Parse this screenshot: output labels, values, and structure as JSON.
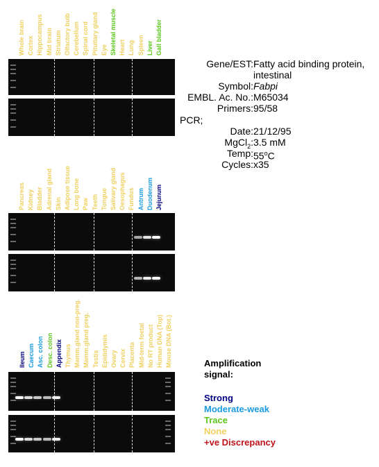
{
  "colors": {
    "strong": "#000080",
    "moderate": "#1a9be0",
    "trace": "#5cc81e",
    "none": "#f0d060",
    "discrepancy": "#c0121a"
  },
  "panels": [
    {
      "lanes": [
        {
          "label": "Whole brain",
          "signal": "none"
        },
        {
          "label": "Cortex",
          "signal": "none"
        },
        {
          "label": "Hippocampus",
          "signal": "none"
        },
        {
          "label": "Mid brain",
          "signal": "none"
        },
        {
          "label": "Striatum",
          "signal": "none"
        },
        {
          "label": "Olfactory bulb",
          "signal": "none"
        },
        {
          "label": "Cerebellum",
          "signal": "none"
        },
        {
          "label": "Spinal cord",
          "signal": "none"
        },
        {
          "label": "Pituitary gland",
          "signal": "none"
        },
        {
          "label": "Eye",
          "signal": "none"
        },
        {
          "label": "Skeletal muscle",
          "signal": "trace"
        },
        {
          "label": "Heart",
          "signal": "none"
        },
        {
          "label": "Lung",
          "signal": "none"
        },
        {
          "label": "Spleen",
          "signal": "none"
        },
        {
          "label": "Liver",
          "signal": "trace"
        },
        {
          "label": "Gall bladder",
          "signal": "trace"
        }
      ],
      "gel1_bands": [],
      "gel2_bands": []
    },
    {
      "lanes": [
        {
          "label": "Pancreas",
          "signal": "none"
        },
        {
          "label": "Kidney",
          "signal": "none"
        },
        {
          "label": "Bladder",
          "signal": "none"
        },
        {
          "label": "Adrenal gland",
          "signal": "none"
        },
        {
          "label": "Skin",
          "signal": "none"
        },
        {
          "label": "Adipose tissue",
          "signal": "none"
        },
        {
          "label": "Long bone",
          "signal": "none"
        },
        {
          "label": "Paw",
          "signal": "none"
        },
        {
          "label": "Teeth",
          "signal": "none"
        },
        {
          "label": "Tongue",
          "signal": "none"
        },
        {
          "label": "Salivary gland",
          "signal": "none"
        },
        {
          "label": "Oesophagus",
          "signal": "none"
        },
        {
          "label": "Fundus",
          "signal": "none"
        },
        {
          "label": "Antrum",
          "signal": "moderate"
        },
        {
          "label": "Duodenum",
          "signal": "moderate"
        },
        {
          "label": "Jejunum",
          "signal": "strong"
        }
      ],
      "gel1_bands": [
        {
          "lane": 13,
          "intensity": 0.35
        },
        {
          "lane": 14,
          "intensity": 0.8
        },
        {
          "lane": 15,
          "intensity": 1.0
        }
      ],
      "gel2_bands": [
        {
          "lane": 13,
          "intensity": 0.45
        },
        {
          "lane": 14,
          "intensity": 0.85
        },
        {
          "lane": 15,
          "intensity": 1.0
        }
      ]
    },
    {
      "lanes": [
        {
          "label": "Ileum",
          "signal": "strong"
        },
        {
          "label": "Caecum",
          "signal": "moderate"
        },
        {
          "label": "Asc. colon",
          "signal": "moderate"
        },
        {
          "label": "Desc. colon",
          "signal": "trace"
        },
        {
          "label": "Appendix",
          "signal": "strong"
        },
        {
          "label": "Thymus",
          "signal": "none"
        },
        {
          "label": "Mamm.gland non-preg.",
          "signal": "none"
        },
        {
          "label": "Mamm.gland preg.",
          "signal": "none"
        },
        {
          "label": "Testis",
          "signal": "none"
        },
        {
          "label": "Epididymis",
          "signal": "none"
        },
        {
          "label": "Ovary",
          "signal": "none"
        },
        {
          "label": "Cervix",
          "signal": "none"
        },
        {
          "label": "Placenta",
          "signal": "none"
        },
        {
          "label": "Mid-term foetal",
          "signal": "none"
        },
        {
          "label": "No RT product",
          "signal": "none"
        },
        {
          "label": "Human DNA (Top)",
          "signal": "none"
        },
        {
          "label": "Mouse DNA (Bot.)",
          "signal": "none"
        }
      ],
      "gel1_bands": [
        {
          "lane": 0,
          "intensity": 1.0
        },
        {
          "lane": 1,
          "intensity": 0.75
        },
        {
          "lane": 2,
          "intensity": 0.6
        },
        {
          "lane": 3,
          "intensity": 0.5
        },
        {
          "lane": 4,
          "intensity": 0.9
        }
      ],
      "gel2_bands": [
        {
          "lane": 0,
          "intensity": 1.0
        },
        {
          "lane": 1,
          "intensity": 0.75
        },
        {
          "lane": 2,
          "intensity": 0.6
        },
        {
          "lane": 3,
          "intensity": 0.5
        },
        {
          "lane": 4,
          "intensity": 0.9
        }
      ]
    }
  ],
  "info": {
    "gene_label": "Gene/EST:",
    "gene_value_1": "Fatty acid binding protein,",
    "gene_value_2": "intestinal",
    "symbol_label": "Symbol:",
    "symbol_value": "Fabpi",
    "embl_label": "EMBL. Ac. No.:",
    "embl_value": "M65034",
    "primers_label": "Primers:",
    "primers_value": "95/58",
    "pcr_label": "PCR;",
    "date_label": "Date:",
    "date_value": "21/12/95",
    "mgcl_label_main": "MgCl",
    "mgcl_label_sub": "2",
    "mgcl_label_colon": ":",
    "mgcl_value": "3.5 mM",
    "temp_label": "Temp:",
    "temp_value_num": "55",
    "temp_value_deg": "o",
    "temp_value_unit": "C",
    "cycles_label": "Cycles:",
    "cycles_value": "x35"
  },
  "legend": {
    "title_1": "Amplification",
    "title_2": "signal:",
    "items": [
      {
        "label": "Strong",
        "key": "strong"
      },
      {
        "label": "Moderate-weak",
        "key": "moderate"
      },
      {
        "label": "Trace",
        "key": "trace"
      },
      {
        "label": "None",
        "key": "none"
      },
      {
        "label": "+ve Discrepancy",
        "key": "discrepancy"
      }
    ]
  }
}
